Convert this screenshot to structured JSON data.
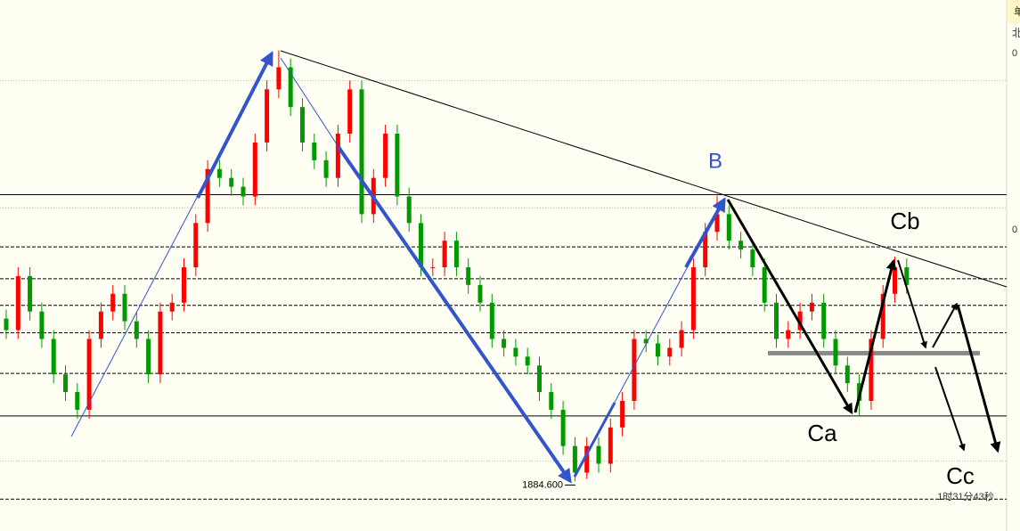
{
  "chart_data": {
    "type": "candlestick",
    "ylim": [
      1879,
      1939
    ],
    "up_color": "#ff0000",
    "down_color": "#009900",
    "open": [
      1903.0,
      1901.7,
      1907.8,
      1903.8,
      1900.7,
      1896.7,
      1894.7,
      1892.7,
      1900.7,
      1903.8,
      1905.8,
      1902.7,
      1900.7,
      1896.7,
      1903.8,
      1904.8,
      1908.8,
      1913.8,
      1919.9,
      1918.9,
      1917.9,
      1916.8,
      1922.9,
      1928.9,
      1931.4,
      1926.9,
      1922.9,
      1920.9,
      1918.9,
      1923.9,
      1928.9,
      1914.8,
      1918.9,
      1923.9,
      1916.8,
      1913.8,
      1908.8,
      1908.8,
      1911.8,
      1908.8,
      1906.8,
      1904.8,
      1900.7,
      1899.7,
      1898.7,
      1897.7,
      1894.7,
      1892.7,
      1888.6,
      1885.6,
      1888.6,
      1886.6,
      1890.7,
      1893.7,
      1900.7,
      1900.2,
      1898.7,
      1899.7,
      1901.7,
      1908.8,
      1912.8,
      1914.8,
      1911.8,
      1910.8,
      1908.8,
      1904.8,
      1900.7,
      1901.7,
      1903.8,
      1904.8,
      1900.7,
      1897.7,
      1895.7,
      1893.7,
      1900.7,
      1905.8,
      1908.8
    ],
    "high": [
      1904.0,
      1908.8,
      1908.8,
      1904.8,
      1901.7,
      1897.7,
      1895.7,
      1901.7,
      1904.8,
      1906.8,
      1906.8,
      1903.7,
      1901.7,
      1904.8,
      1905.8,
      1909.8,
      1914.8,
      1920.9,
      1920.9,
      1919.9,
      1918.9,
      1923.9,
      1929.9,
      1933.3,
      1932.4,
      1927.9,
      1923.9,
      1921.9,
      1924.9,
      1929.9,
      1929.9,
      1919.9,
      1924.9,
      1924.9,
      1917.8,
      1914.8,
      1909.8,
      1912.8,
      1912.8,
      1909.8,
      1907.8,
      1905.8,
      1901.7,
      1900.7,
      1899.7,
      1898.7,
      1895.7,
      1893.7,
      1889.6,
      1889.6,
      1889.6,
      1891.7,
      1894.7,
      1901.7,
      1901.7,
      1901.2,
      1900.7,
      1902.7,
      1909.8,
      1913.8,
      1916.9,
      1915.8,
      1912.8,
      1911.8,
      1909.8,
      1905.8,
      1902.7,
      1904.8,
      1905.8,
      1905.8,
      1901.7,
      1898.7,
      1896.7,
      1901.7,
      1906.8,
      1910.0,
      1909.8
    ],
    "low": [
      1900.7,
      1900.7,
      1902.8,
      1899.7,
      1895.7,
      1893.7,
      1891.7,
      1891.7,
      1899.7,
      1902.8,
      1901.7,
      1899.7,
      1895.7,
      1895.7,
      1902.8,
      1903.8,
      1907.8,
      1912.8,
      1917.9,
      1916.9,
      1915.8,
      1915.8,
      1921.9,
      1927.9,
      1925.9,
      1921.9,
      1919.9,
      1917.9,
      1917.9,
      1922.9,
      1913.8,
      1913.8,
      1917.9,
      1915.8,
      1912.8,
      1907.8,
      1907.8,
      1907.8,
      1907.8,
      1905.8,
      1903.8,
      1899.7,
      1898.7,
      1897.7,
      1896.7,
      1893.7,
      1891.7,
      1887.6,
      1884.6,
      1884.9,
      1885.6,
      1885.6,
      1889.7,
      1892.7,
      1899.2,
      1897.7,
      1897.7,
      1898.7,
      1900.7,
      1907.8,
      1911.8,
      1910.8,
      1909.8,
      1907.8,
      1903.8,
      1899.7,
      1899.7,
      1900.7,
      1902.8,
      1899.7,
      1896.7,
      1894.7,
      1892.0,
      1892.7,
      1899.7,
      1904.8,
      1905.8
    ],
    "close": [
      1901.7,
      1907.8,
      1903.8,
      1900.7,
      1896.7,
      1894.7,
      1892.7,
      1900.7,
      1903.8,
      1905.8,
      1902.7,
      1900.7,
      1896.7,
      1903.8,
      1904.8,
      1908.8,
      1913.8,
      1919.9,
      1918.9,
      1917.9,
      1916.8,
      1922.9,
      1928.9,
      1931.4,
      1926.9,
      1922.9,
      1920.9,
      1918.9,
      1923.9,
      1928.9,
      1914.8,
      1918.9,
      1923.9,
      1916.8,
      1913.8,
      1908.8,
      1908.8,
      1911.8,
      1908.8,
      1906.8,
      1904.8,
      1900.7,
      1899.7,
      1898.7,
      1897.7,
      1894.7,
      1892.7,
      1888.6,
      1885.6,
      1888.6,
      1886.6,
      1890.7,
      1893.7,
      1900.7,
      1900.2,
      1898.7,
      1899.7,
      1901.7,
      1908.8,
      1912.8,
      1914.8,
      1911.8,
      1910.8,
      1908.8,
      1904.8,
      1900.7,
      1901.7,
      1903.8,
      1904.8,
      1900.7,
      1897.7,
      1895.7,
      1893.7,
      1900.7,
      1905.8,
      1908.8,
      1906.8
    ],
    "levels": [
      {
        "value": 1929.9,
        "style": "dotted"
      },
      {
        "value": 1915.5,
        "style": "dotted"
      },
      {
        "value": 1886.9,
        "style": "dotted"
      },
      {
        "value": 1917.0,
        "style": "solid"
      },
      {
        "value": 1892.0,
        "style": "solid"
      },
      {
        "value": 1911.1,
        "style": "dashed"
      },
      {
        "value": 1907.5,
        "style": "dashed"
      },
      {
        "value": 1904.5,
        "style": "dashed"
      },
      {
        "value": 1901.4,
        "style": "dashed"
      },
      {
        "value": 1896.8,
        "style": "dashed"
      },
      {
        "value": 1882.6,
        "style": "dashed"
      },
      {
        "value": 1899.1,
        "style": "thick"
      }
    ],
    "low_marker": {
      "value": 1884.6,
      "label": "1884.600"
    },
    "annotations": [
      "B",
      "Ca",
      "Cb",
      "Cc"
    ],
    "countdown": "1时31分43秒",
    "side_labels": [
      "单",
      "北",
      "0",
      "0"
    ]
  }
}
